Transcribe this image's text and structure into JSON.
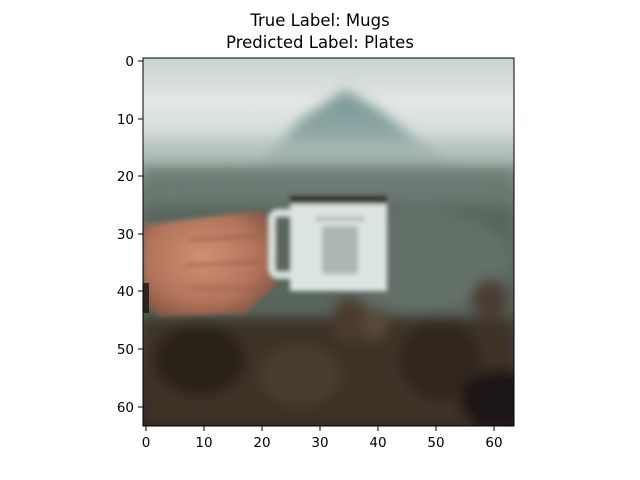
{
  "figure": {
    "title_line_1": "True Label: Mugs",
    "title_line_2": "Predicted Label: Plates",
    "image_description": "Blurry 64x64 pixel photo of a hand holding a white enamel mug in front of a misty mountain, with dark blurred foliage in the foreground"
  },
  "axes": {
    "x_ticks": [
      "0",
      "10",
      "20",
      "30",
      "40",
      "50",
      "60"
    ],
    "y_ticks": [
      "0",
      "10",
      "20",
      "30",
      "40",
      "50",
      "60"
    ],
    "x_range": [
      -0.5,
      63.5
    ],
    "y_range": [
      -0.5,
      63.5
    ]
  },
  "colors": {
    "sky": "#cfd9d6",
    "mountain": "#7d9a97",
    "mist": "#a9bcb8",
    "hillside": "#55625a",
    "foreground": "#3a3128",
    "hand": "#c4866a",
    "mug": "#dfe6e1"
  }
}
